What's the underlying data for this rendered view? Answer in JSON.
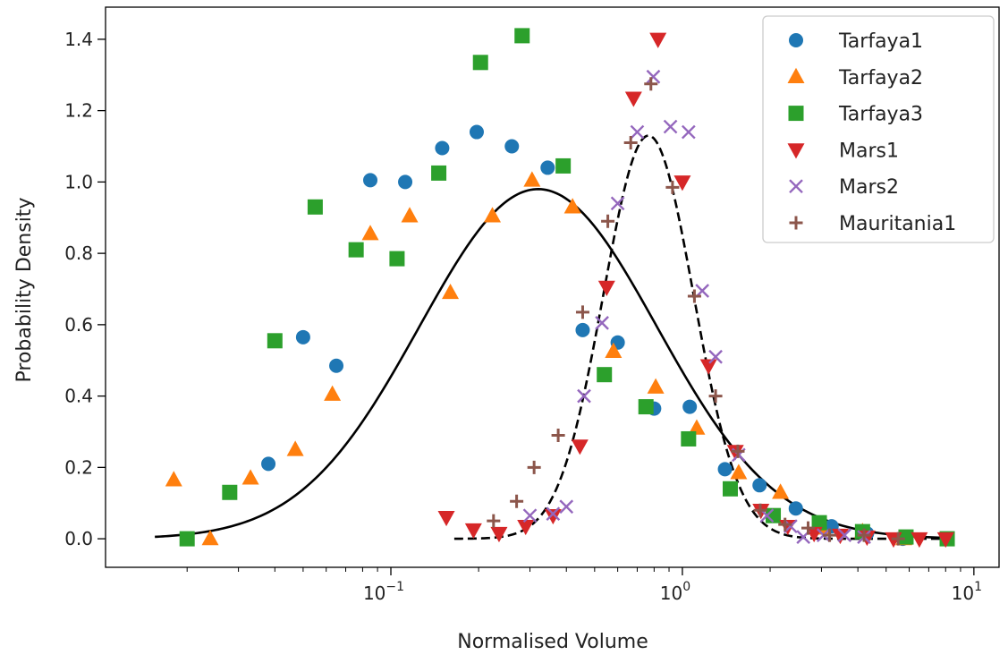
{
  "chart_data": {
    "type": "scatter",
    "title": "",
    "xlabel": "Normalised Volume",
    "ylabel": "Probability Density",
    "xscale": "log",
    "xlim": [
      0.0105,
      12.2
    ],
    "ylim": [
      -0.08,
      1.49
    ],
    "x_ticks": [
      {
        "value": 0.1,
        "base": "10",
        "exp": "−1"
      },
      {
        "value": 1,
        "base": "10",
        "exp": "0"
      },
      {
        "value": 10,
        "base": "10",
        "exp": "1"
      }
    ],
    "y_ticks": [
      {
        "value": 0.0,
        "label": "0.0"
      },
      {
        "value": 0.2,
        "label": "0.2"
      },
      {
        "value": 0.4,
        "label": "0.4"
      },
      {
        "value": 0.6,
        "label": "0.6"
      },
      {
        "value": 0.8,
        "label": "0.8"
      },
      {
        "value": 1.0,
        "label": "1.0"
      },
      {
        "value": 1.2,
        "label": "1.2"
      },
      {
        "value": 1.4,
        "label": "1.4"
      }
    ],
    "grid": false,
    "legend_position": "top-right",
    "series": [
      {
        "name": "Tarfaya1",
        "marker": "circle",
        "color": "#1f77b4",
        "points": [
          [
            0.02,
            0.0
          ],
          [
            0.038,
            0.21
          ],
          [
            0.05,
            0.565
          ],
          [
            0.065,
            0.485
          ],
          [
            0.085,
            1.005
          ],
          [
            0.112,
            1.0
          ],
          [
            0.15,
            1.095
          ],
          [
            0.197,
            1.14
          ],
          [
            0.26,
            1.1
          ],
          [
            0.345,
            1.04
          ],
          [
            0.455,
            0.585
          ],
          [
            0.6,
            0.55
          ],
          [
            0.8,
            0.365
          ],
          [
            1.06,
            0.37
          ],
          [
            1.4,
            0.195
          ],
          [
            1.84,
            0.15
          ],
          [
            2.45,
            0.085
          ],
          [
            3.25,
            0.035
          ],
          [
            4.3,
            0.015
          ],
          [
            5.7,
            0.0
          ]
        ]
      },
      {
        "name": "Tarfaya2",
        "marker": "triangle-up",
        "color": "#ff7f0e",
        "points": [
          [
            0.018,
            0.165
          ],
          [
            0.024,
            0.0
          ],
          [
            0.033,
            0.17
          ],
          [
            0.047,
            0.25
          ],
          [
            0.063,
            0.405
          ],
          [
            0.085,
            0.855
          ],
          [
            0.116,
            0.905
          ],
          [
            0.16,
            0.69
          ],
          [
            0.223,
            0.905
          ],
          [
            0.305,
            1.005
          ],
          [
            0.42,
            0.93
          ],
          [
            0.58,
            0.525
          ],
          [
            0.81,
            0.425
          ],
          [
            1.12,
            0.31
          ],
          [
            1.56,
            0.185
          ],
          [
            2.17,
            0.13
          ],
          [
            3.0,
            0.03
          ],
          [
            4.15,
            0.02
          ],
          [
            5.75,
            0.0
          ]
        ]
      },
      {
        "name": "Tarfaya3",
        "marker": "square",
        "color": "#2ca02c",
        "points": [
          [
            0.02,
            0.0
          ],
          [
            0.028,
            0.13
          ],
          [
            0.04,
            0.555
          ],
          [
            0.055,
            0.93
          ],
          [
            0.076,
            0.81
          ],
          [
            0.105,
            0.785
          ],
          [
            0.146,
            1.025
          ],
          [
            0.203,
            1.335
          ],
          [
            0.282,
            1.41
          ],
          [
            0.39,
            1.045
          ],
          [
            0.54,
            0.46
          ],
          [
            0.75,
            0.37
          ],
          [
            1.05,
            0.28
          ],
          [
            1.46,
            0.14
          ],
          [
            2.05,
            0.065
          ],
          [
            2.95,
            0.045
          ],
          [
            4.15,
            0.02
          ],
          [
            5.85,
            0.005
          ],
          [
            8.1,
            0.0
          ]
        ]
      },
      {
        "name": "Mars1",
        "marker": "triangle-down",
        "color": "#d62728",
        "points": [
          [
            0.155,
            0.06
          ],
          [
            0.192,
            0.025
          ],
          [
            0.235,
            0.015
          ],
          [
            0.29,
            0.035
          ],
          [
            0.36,
            0.065
          ],
          [
            0.445,
            0.26
          ],
          [
            0.55,
            0.705
          ],
          [
            0.68,
            1.235
          ],
          [
            0.825,
            1.4
          ],
          [
            1.0,
            1.0
          ],
          [
            1.23,
            0.485
          ],
          [
            1.52,
            0.245
          ],
          [
            1.86,
            0.08
          ],
          [
            2.3,
            0.035
          ],
          [
            2.83,
            0.015
          ],
          [
            3.48,
            0.01
          ],
          [
            4.3,
            0.005
          ],
          [
            5.3,
            0.0
          ],
          [
            6.5,
            0.0
          ],
          [
            8.0,
            0.0
          ]
        ]
      },
      {
        "name": "Mars2",
        "marker": "x",
        "color": "#9467bd",
        "points": [
          [
            0.3,
            0.065
          ],
          [
            0.36,
            0.07
          ],
          [
            0.4,
            0.09
          ],
          [
            0.46,
            0.4
          ],
          [
            0.53,
            0.605
          ],
          [
            0.6,
            0.94
          ],
          [
            0.7,
            1.14
          ],
          [
            0.795,
            1.295
          ],
          [
            0.91,
            1.155
          ],
          [
            1.05,
            1.14
          ],
          [
            1.17,
            0.695
          ],
          [
            1.3,
            0.51
          ],
          [
            1.56,
            0.235
          ],
          [
            1.95,
            0.065
          ],
          [
            2.35,
            0.035
          ],
          [
            2.6,
            0.005
          ],
          [
            3.05,
            0.01
          ],
          [
            3.6,
            0.01
          ],
          [
            4.2,
            0.005
          ]
        ]
      },
      {
        "name": "Mauritania1",
        "marker": "plus",
        "color": "#8c564b",
        "points": [
          [
            0.225,
            0.05
          ],
          [
            0.27,
            0.105
          ],
          [
            0.31,
            0.2
          ],
          [
            0.375,
            0.29
          ],
          [
            0.455,
            0.635
          ],
          [
            0.555,
            0.89
          ],
          [
            0.665,
            1.11
          ],
          [
            0.78,
            1.275
          ],
          [
            0.925,
            0.985
          ],
          [
            1.1,
            0.68
          ],
          [
            1.3,
            0.4
          ],
          [
            1.55,
            0.245
          ],
          [
            1.85,
            0.08
          ],
          [
            2.25,
            0.04
          ],
          [
            2.7,
            0.03
          ],
          [
            3.2,
            0.01
          ],
          [
            4.2,
            0.01
          ],
          [
            5.5,
            0.0
          ]
        ]
      }
    ],
    "fit_curves": [
      {
        "style": "solid",
        "color": "#000000",
        "x_range": [
          0.0155,
          8.2
        ],
        "mu": 0.32,
        "sigma_log10": 0.4075,
        "peak": 0.98
      },
      {
        "style": "dashed",
        "color": "#000000",
        "x_range": [
          0.165,
          8.2
        ],
        "mu": 0.765,
        "sigma_log10": 0.1545,
        "peak": 1.13
      }
    ]
  }
}
